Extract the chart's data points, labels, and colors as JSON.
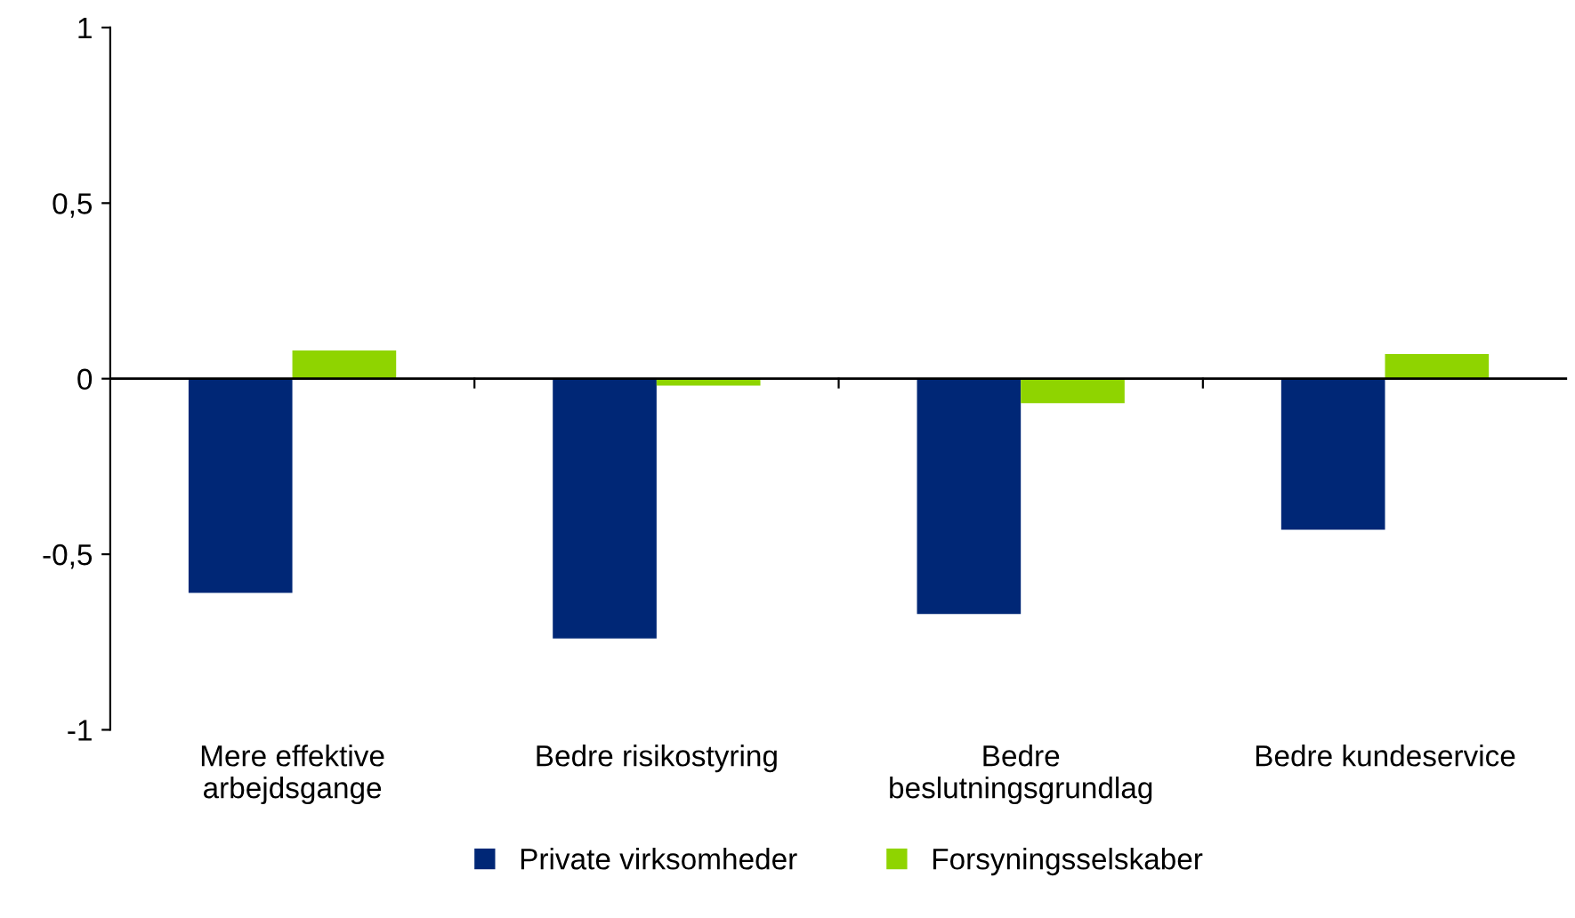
{
  "chart_data": {
    "type": "bar",
    "categories": [
      "Mere effektive\narbejdsgange",
      "Bedre risikostyring",
      "Bedre\nbeslutningsgrundlag",
      "Bedre kundeservice"
    ],
    "series": [
      {
        "name": "Private virksomheder",
        "color": "#002776",
        "values": [
          -0.61,
          -0.74,
          -0.67,
          -0.43
        ]
      },
      {
        "name": "Forsyningsselskaber",
        "color": "#8fd400",
        "values": [
          0.08,
          -0.02,
          -0.07,
          0.07
        ]
      }
    ],
    "ylim": [
      -1,
      1
    ],
    "yticks": [
      {
        "value": -1,
        "label": "-1"
      },
      {
        "value": -0.5,
        "label": "-0,5"
      },
      0,
      {
        "value": 0.5,
        "label": "0,5"
      },
      1
    ],
    "ref_lines": [
      {
        "axis": "y",
        "value": 0,
        "color": "#000000"
      }
    ],
    "grid": false,
    "legend": "bottom"
  }
}
